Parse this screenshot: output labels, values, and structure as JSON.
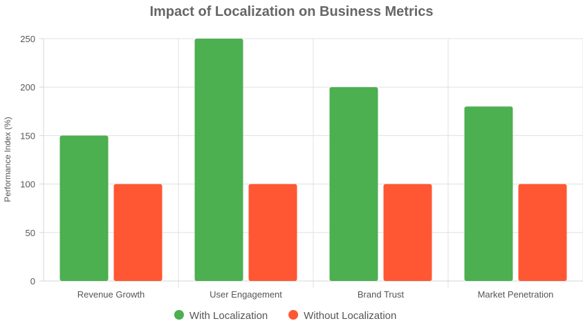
{
  "colors": {
    "with": "#4CAF50",
    "without": "#FF5733"
  },
  "chart_data": {
    "type": "bar",
    "title": "Impact of Localization on Business Metrics",
    "xlabel": "",
    "ylabel": "Performance Index (%)",
    "categories": [
      "Revenue Growth",
      "User Engagement",
      "Brand Trust",
      "Market Penetration"
    ],
    "series": [
      {
        "name": "With Localization",
        "values": [
          150,
          250,
          200,
          180
        ]
      },
      {
        "name": "Without Localization",
        "values": [
          100,
          100,
          100,
          100
        ]
      }
    ],
    "ylim": [
      0,
      250
    ],
    "yticks": [
      "0",
      "50",
      "100",
      "150",
      "200",
      "250"
    ],
    "grid": true,
    "legend": "bottom-center"
  }
}
